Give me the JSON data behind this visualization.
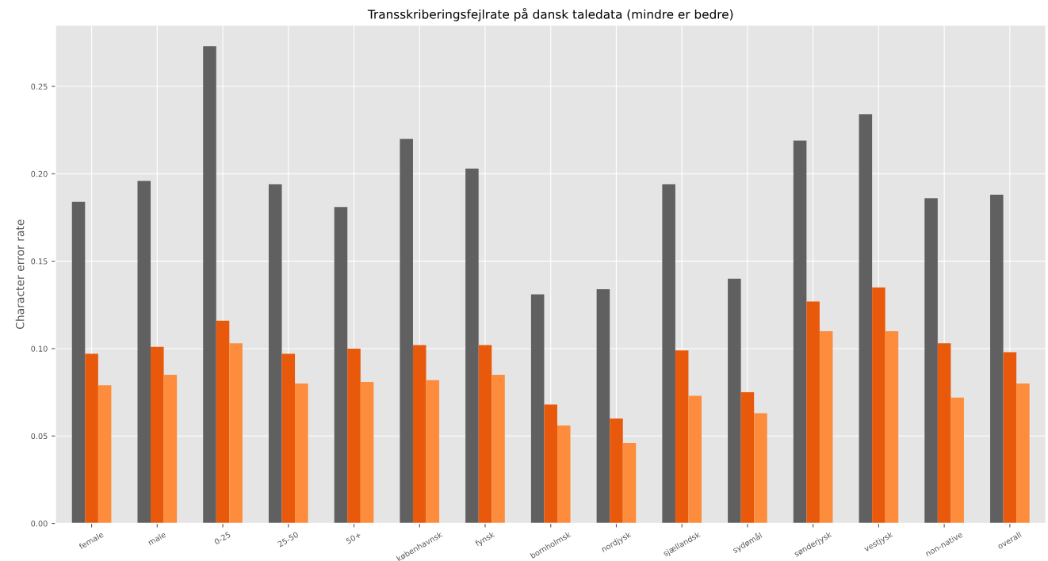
{
  "chart_data": {
    "type": "bar",
    "title": "Transskriberingsfejlrate på dansk taledata (mindre er bedre)",
    "ylabel": "Character error rate",
    "categories": [
      "female",
      "male",
      "0-25",
      "25-50",
      "50+",
      "københavnsk",
      "fynsk",
      "bornholmsk",
      "nordjysk",
      "sjællandsk",
      "sydømål",
      "sønderjysk",
      "vestjysk",
      "non-native",
      "overall"
    ],
    "series": [
      {
        "color": "#606060",
        "values": [
          0.184,
          0.196,
          0.273,
          0.194,
          0.181,
          0.22,
          0.203,
          0.131,
          0.134,
          0.194,
          0.14,
          0.219,
          0.234,
          0.186,
          0.188
        ]
      },
      {
        "color": "#e8590c",
        "values": [
          0.097,
          0.101,
          0.116,
          0.097,
          0.1,
          0.102,
          0.102,
          0.068,
          0.06,
          0.099,
          0.075,
          0.127,
          0.135,
          0.103,
          0.098
        ]
      },
      {
        "color": "#fd8d3c",
        "values": [
          0.079,
          0.085,
          0.103,
          0.08,
          0.081,
          0.082,
          0.085,
          0.056,
          0.046,
          0.073,
          0.063,
          0.11,
          0.11,
          0.072,
          0.08
        ]
      }
    ],
    "ylim": [
      0,
      0.285
    ],
    "yticks": [
      {
        "value": 0,
        "label": "0.00"
      },
      {
        "value": 0.05,
        "label": "0.05"
      },
      {
        "value": 0.1,
        "label": "0.10"
      },
      {
        "value": 0.15,
        "label": "0.15"
      },
      {
        "value": 0.2,
        "label": "0.20"
      },
      {
        "value": 0.25,
        "label": "0.25"
      }
    ],
    "grid": true,
    "legend": false
  }
}
